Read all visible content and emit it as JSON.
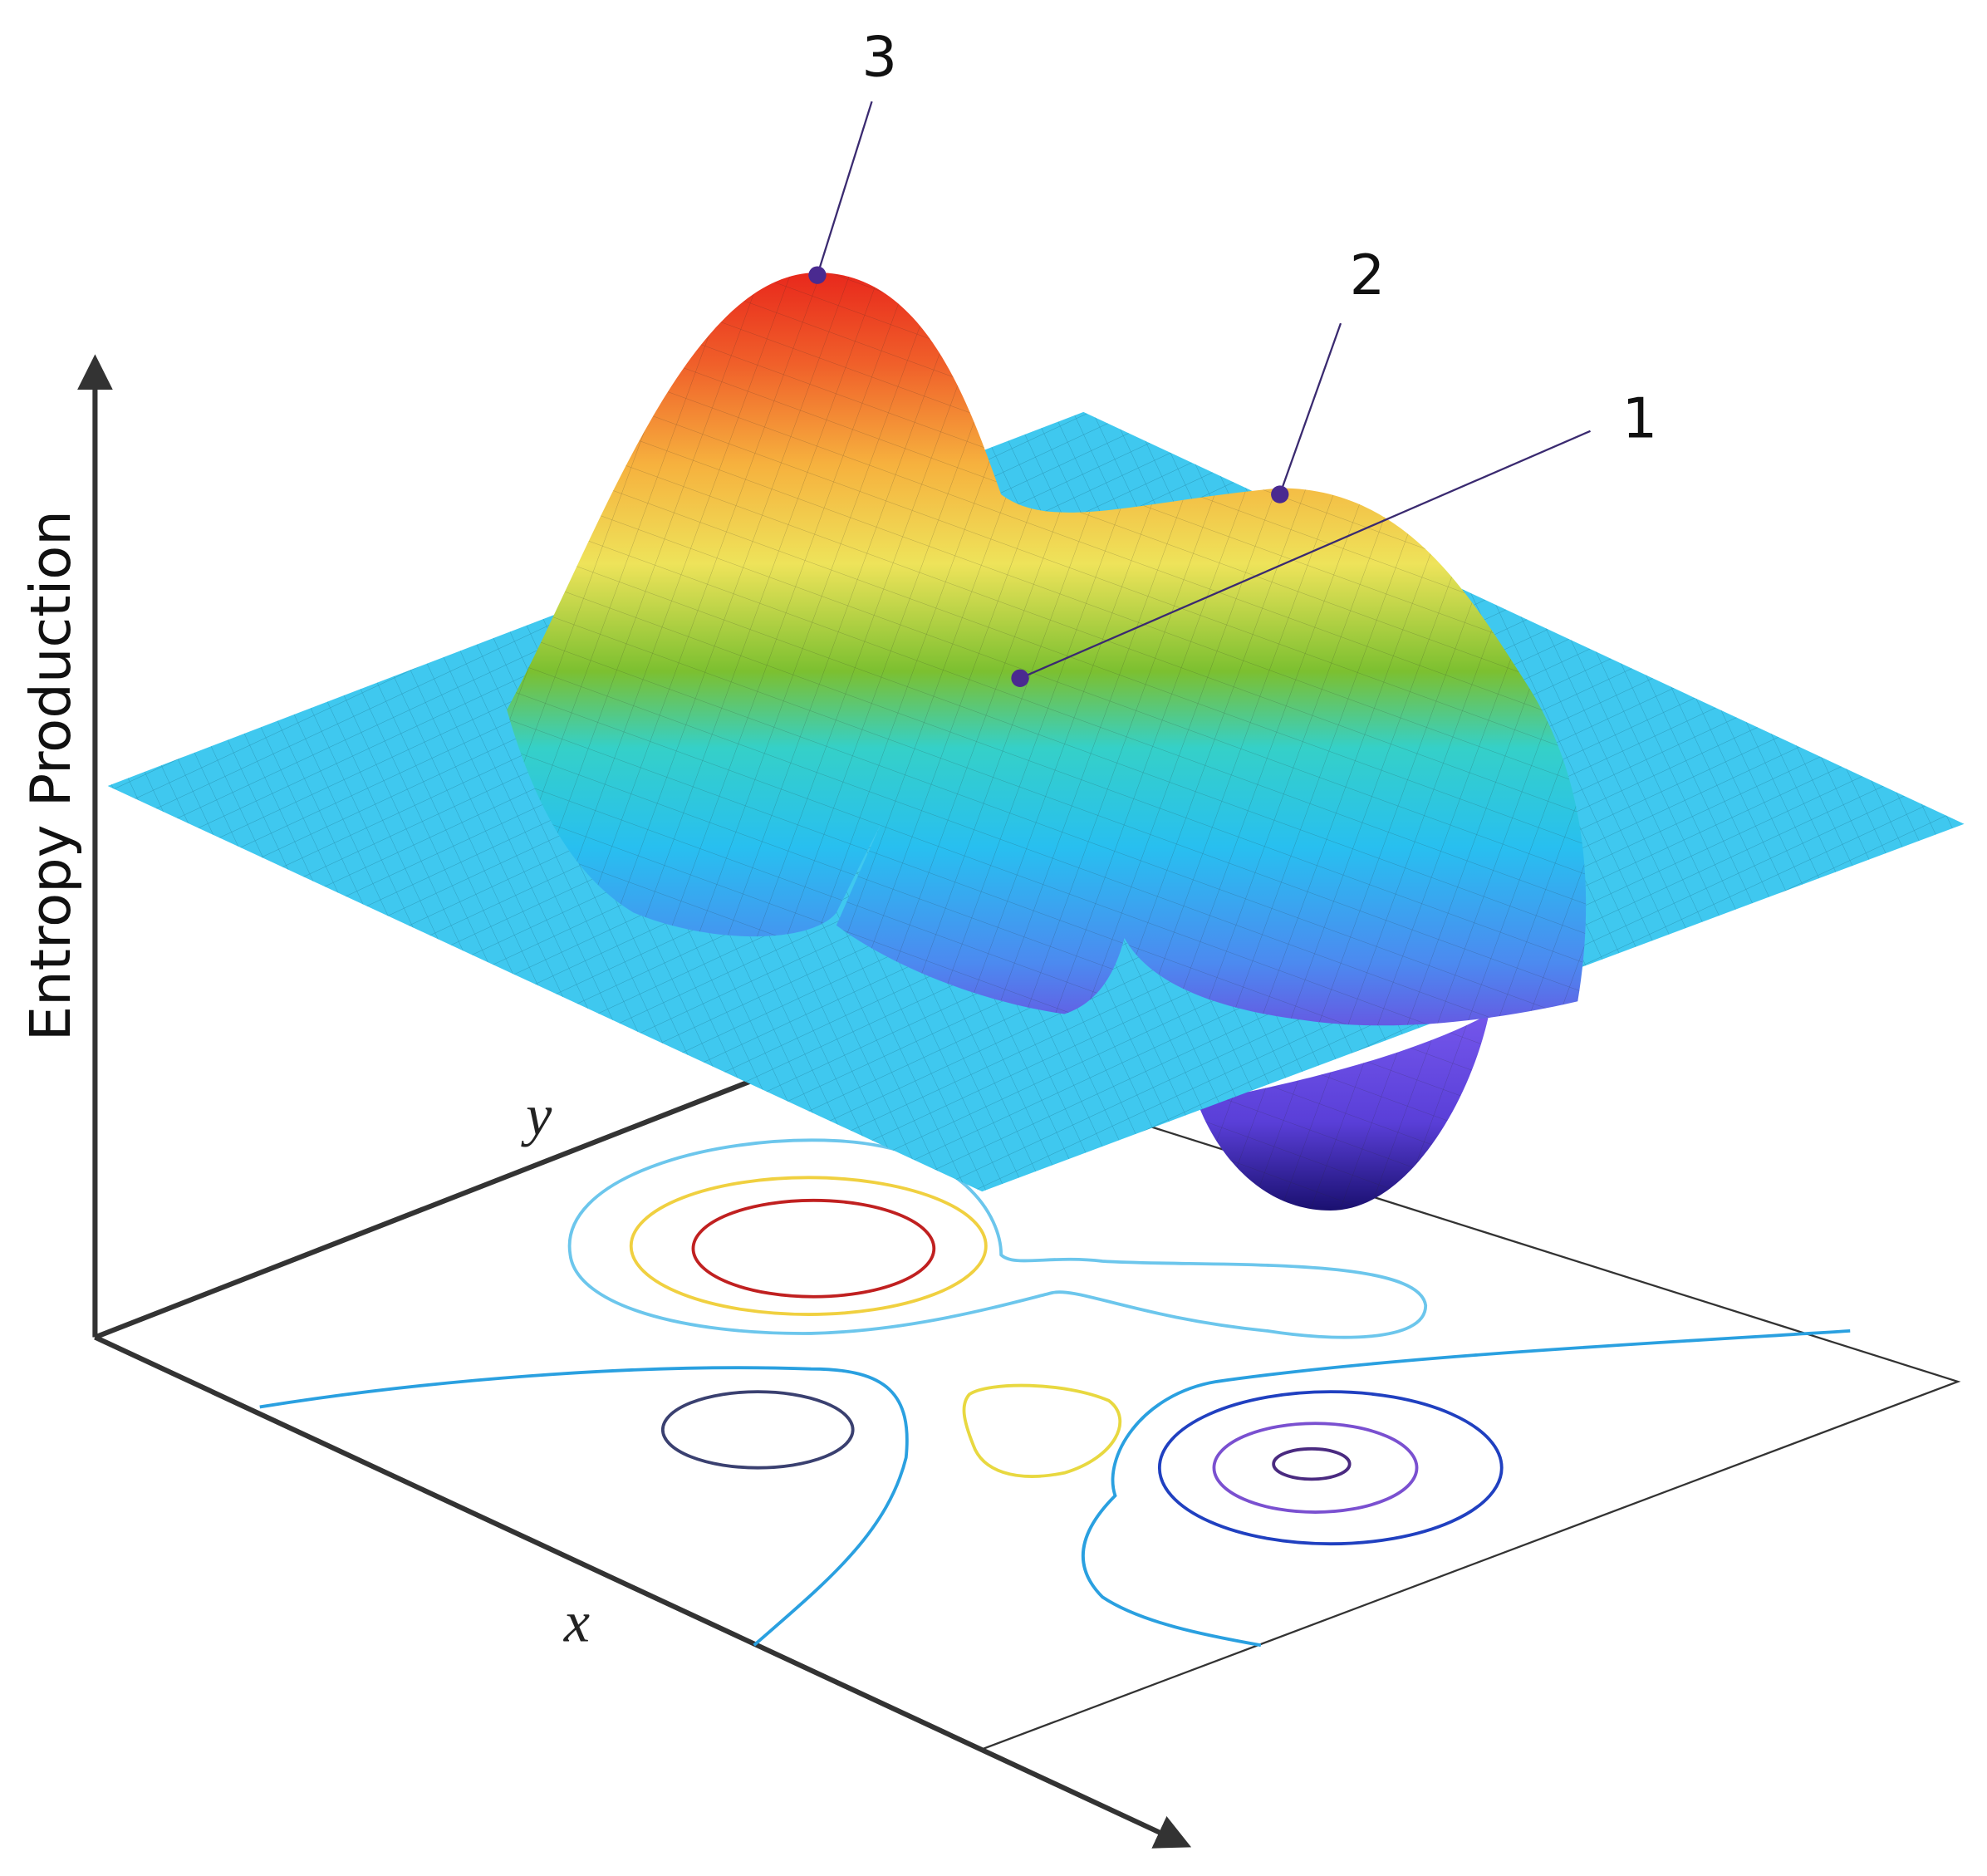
{
  "axes": {
    "vertical": "Entropy Production",
    "x": "x",
    "y": "y"
  },
  "points": [
    {
      "label": "1"
    },
    {
      "label": "2"
    },
    {
      "label": "3"
    }
  ]
}
